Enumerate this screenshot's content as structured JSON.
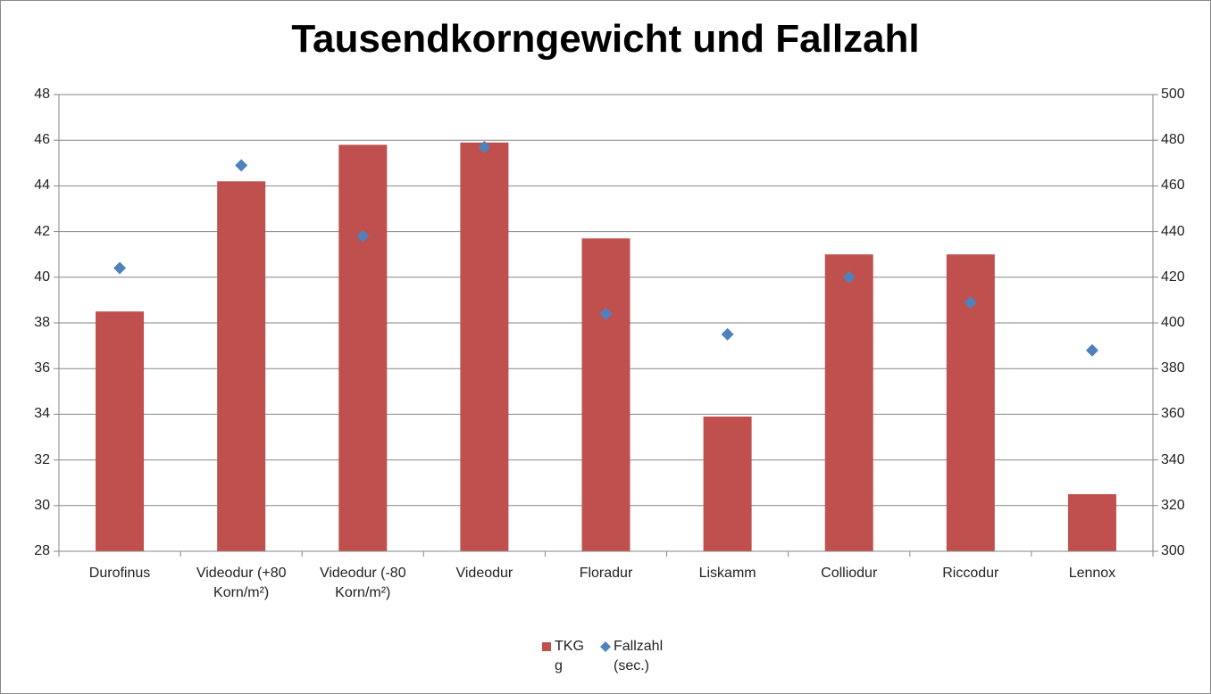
{
  "chart_data": {
    "type": "bar",
    "title": "Tausendkorngewicht und Fallzahl",
    "categories": [
      "Durofinus",
      "Videodur (+80 Korn/m²)",
      "Videodur (-80 Korn/m²)",
      "Videodur",
      "Floradur",
      "Liskamm",
      "Colliodur",
      "Riccodur",
      "Lennox"
    ],
    "series": [
      {
        "name": "TKG g",
        "type": "bar",
        "color": "#c0504d",
        "values": [
          38.5,
          44.2,
          45.8,
          45.9,
          41.7,
          33.9,
          41.0,
          41.0,
          30.5
        ]
      },
      {
        "name": "Fallzahl (sec.)",
        "type": "scatter",
        "axis": "y2",
        "color": "#4f81bd",
        "values": [
          424,
          469,
          438,
          477,
          404,
          395,
          420,
          409,
          388
        ]
      }
    ],
    "ylim": [
      28,
      48
    ],
    "yticks": [
      28,
      30,
      32,
      34,
      36,
      38,
      40,
      42,
      44,
      46,
      48
    ],
    "y2lim": [
      300,
      500
    ],
    "y2ticks": [
      300,
      320,
      340,
      360,
      380,
      400,
      420,
      440,
      460,
      480,
      500
    ],
    "grid": true,
    "legend": "bottom"
  }
}
